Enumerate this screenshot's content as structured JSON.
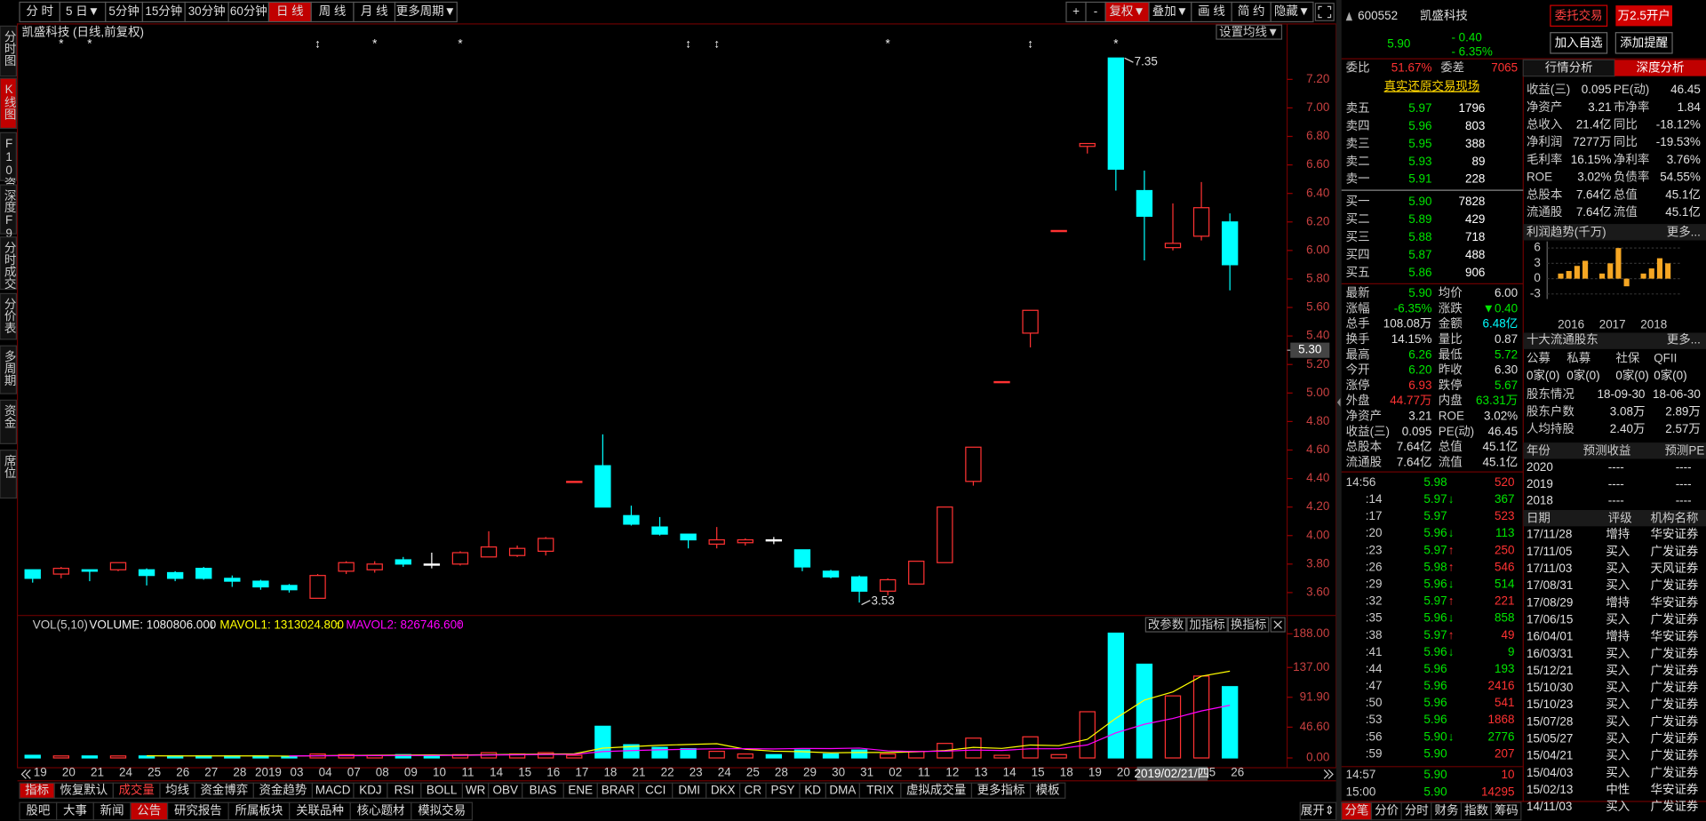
{
  "toolbar": {
    "periods": [
      "分 时",
      "5 日▼",
      "5分钟",
      "15分钟",
      "30分钟",
      "60分钟",
      "日 线",
      "周 线",
      "月 线",
      "更多周期▼"
    ],
    "tools": [
      "+",
      "-",
      "复权▼",
      "叠加▼",
      "画 线",
      "简 约",
      "隐藏▼"
    ]
  },
  "side_tabs": [
    "分时图",
    "K线图",
    "F10资料",
    "深度F9",
    "分时成交",
    "分价表",
    "多周期",
    "资金",
    "席位"
  ],
  "chart_data": {
    "type": "candlestick",
    "title": "凯盛科技 (日线,前复权)",
    "ma_button": "设置均线▼",
    "up_color": "#ff3232",
    "down_color": "#00ffff",
    "flat_color": "#ffffff",
    "categories": [
      "19",
      "20",
      "21",
      "24",
      "25",
      "26",
      "27",
      "28",
      "2019",
      "03",
      "04",
      "07",
      "08",
      "09",
      "10",
      "11",
      "14",
      "15",
      "16",
      "17",
      "18",
      "21",
      "22",
      "23",
      "24",
      "25",
      "28",
      "29",
      "30",
      "31",
      "02",
      "11",
      "12",
      "13",
      "14",
      "15",
      "18",
      "19",
      "20",
      null,
      null,
      "25",
      "26"
    ],
    "open": [
      3.76,
      3.73,
      3.76,
      3.76,
      3.76,
      3.74,
      3.77,
      3.7,
      3.68,
      3.65,
      3.56,
      3.75,
      3.76,
      3.83,
      3.8,
      3.8,
      3.85,
      3.86,
      3.89,
      4.38,
      4.49,
      4.14,
      4.06,
      4.01,
      3.94,
      3.95,
      3.97,
      3.9,
      3.75,
      3.71,
      3.61,
      3.66,
      3.81,
      4.38,
      5.08,
      5.42,
      6.14,
      6.73,
      7.35,
      6.42,
      6.02,
      6.1,
      6.2
    ],
    "high": [
      3.76,
      3.78,
      3.76,
      3.81,
      3.77,
      3.75,
      3.78,
      3.72,
      3.69,
      3.66,
      3.73,
      3.82,
      3.82,
      3.85,
      3.88,
      3.89,
      4.03,
      3.93,
      3.99,
      4.38,
      4.71,
      4.21,
      4.13,
      4.01,
      4.06,
      3.98,
      3.99,
      3.9,
      3.76,
      3.72,
      3.7,
      3.82,
      4.2,
      4.62,
      5.08,
      5.58,
      6.14,
      6.75,
      7.35,
      6.56,
      6.33,
      6.48,
      6.26
    ],
    "low": [
      3.67,
      3.7,
      3.68,
      3.75,
      3.65,
      3.68,
      3.69,
      3.64,
      3.62,
      3.6,
      3.56,
      3.73,
      3.74,
      3.78,
      3.77,
      3.79,
      3.85,
      3.85,
      3.86,
      4.38,
      4.2,
      4.07,
      4.0,
      3.91,
      3.91,
      3.93,
      3.94,
      3.75,
      3.7,
      3.53,
      3.58,
      3.66,
      3.81,
      4.35,
      5.08,
      5.32,
      6.14,
      6.68,
      6.42,
      5.93,
      6.0,
      6.07,
      5.72
    ],
    "close": [
      3.7,
      3.77,
      3.75,
      3.81,
      3.72,
      3.7,
      3.7,
      3.68,
      3.64,
      3.62,
      3.72,
      3.81,
      3.8,
      3.8,
      3.8,
      3.88,
      3.92,
      3.91,
      3.98,
      4.38,
      4.2,
      4.08,
      4.01,
      3.97,
      3.97,
      3.97,
      3.97,
      3.78,
      3.71,
      3.61,
      3.69,
      3.82,
      4.2,
      4.62,
      5.08,
      5.58,
      6.14,
      6.75,
      6.57,
      6.24,
      6.05,
      6.3,
      5.9
    ],
    "ylim": [
      3.447,
      7.467
    ],
    "yticks": [
      {
        "value": 3.6,
        "label": "3.60"
      },
      {
        "value": 3.8,
        "label": "3.80"
      },
      {
        "value": 4.0,
        "label": "4.00"
      },
      {
        "value": 4.2,
        "label": "4.20"
      },
      {
        "value": 4.4,
        "label": "4.40"
      },
      {
        "value": 4.6,
        "label": "4.60"
      },
      {
        "value": 4.8,
        "label": "4.80"
      },
      {
        "value": 5.0,
        "label": "5.00"
      },
      {
        "value": 5.2,
        "label": "5.20"
      },
      {
        "value": 5.4,
        "label": "5.40"
      },
      {
        "value": 5.6,
        "label": "5.60"
      },
      {
        "value": 5.8,
        "label": "5.80"
      },
      {
        "value": 6.0,
        "label": "6.00"
      },
      {
        "value": 6.2,
        "label": "6.20"
      },
      {
        "value": 6.4,
        "label": "6.40"
      },
      {
        "value": 6.6,
        "label": "6.60"
      },
      {
        "value": 6.8,
        "label": "6.80"
      },
      {
        "value": 7.0,
        "label": "7.00"
      },
      {
        "value": 7.2,
        "label": "7.20"
      }
    ],
    "high_label": {
      "value": 7.35,
      "label": "7.35"
    },
    "low_label": {
      "value": 3.53,
      "label": "3.53"
    },
    "cursor_price": {
      "value": 5.3,
      "label": "5.30"
    },
    "cursor_date": "2019/02/21/四",
    "markers": [
      {
        "index": 1,
        "symbol": "*"
      },
      {
        "index": 2,
        "symbol": "*"
      },
      {
        "index": 10,
        "symbol": "↕"
      },
      {
        "index": 12,
        "symbol": "*"
      },
      {
        "index": 15,
        "symbol": "*"
      },
      {
        "index": 23,
        "symbol": "↕"
      },
      {
        "index": 24,
        "symbol": "↕"
      },
      {
        "index": 30,
        "symbol": "*"
      },
      {
        "index": 35,
        "symbol": "↕"
      },
      {
        "index": 38,
        "symbol": "*"
      }
    ],
    "volume": {
      "title": "VOL(5,10)",
      "volume_text": "VOLUME: 1080806.000",
      "volume_arrow": "↓",
      "mavol1_text": "MAVOL1: 1313024.800",
      "mavol1_arrow": "↑",
      "mavol1_color": "#ffff00",
      "mavol1_period": 5,
      "mavol2_text": "MAVOL2: 826746.600",
      "mavol2_arrow": "↑",
      "mavol2_color": "#ff00ff",
      "mavol2_period": 10,
      "buttons": [
        "改参数",
        "加指标",
        "换指标"
      ],
      "values": [
        4,
        3,
        3,
        3,
        3,
        3,
        3,
        3,
        3,
        2,
        6,
        5,
        4,
        5,
        3,
        5,
        8,
        6,
        8,
        4,
        48,
        20,
        16,
        14,
        10,
        6,
        5,
        12,
        6,
        12,
        6,
        10,
        22,
        30,
        4,
        32,
        5,
        70,
        189,
        142,
        94,
        124,
        108
      ],
      "ylim": [
        0,
        196
      ],
      "yticks": [
        {
          "value": 0,
          "label": "0.00"
        },
        {
          "value": 46.6,
          "label": "46.60"
        },
        {
          "value": 91.9,
          "label": "91.90"
        },
        {
          "value": 137,
          "label": "137.00"
        },
        {
          "value": 188,
          "label": "188.00"
        }
      ]
    }
  },
  "indicator_tabs": [
    "指标",
    "恢复默认",
    "成交量",
    "均线",
    "资金博弈",
    "资金趋势",
    "MACD",
    "KDJ",
    "RSI",
    "BOLL",
    "WR",
    "OBV",
    "BIAS",
    "ENE",
    "BRAR",
    "CCI",
    "DMI",
    "DKX",
    "CR",
    "PSY",
    "KD",
    "DMA",
    "TRIX",
    "虚拟成交量",
    "更多指标",
    "模板"
  ],
  "bottom_tabs": [
    "股吧",
    "大事",
    "新闻",
    "公告",
    "研究报告",
    "所属板块",
    "关联品种",
    "核心题材",
    "模拟交易"
  ],
  "expand": "展开⇕",
  "quote": {
    "code": "600552",
    "name": "凯盛科技",
    "price": "5.90",
    "change": "- 0.40",
    "pct": "- 6.35%",
    "buttons": [
      "委托交易",
      "万2.5开户",
      "加入自选",
      "添加提醒"
    ],
    "ratio_label": "委比",
    "ratio": "51.67%",
    "diff_label": "委差",
    "diff": "7065",
    "live": "真实还原交易现场",
    "asks": [
      [
        "卖五",
        "5.97",
        "1796"
      ],
      [
        "卖四",
        "5.96",
        "803"
      ],
      [
        "卖三",
        "5.95",
        "388"
      ],
      [
        "卖二",
        "5.93",
        "89"
      ],
      [
        "卖一",
        "5.91",
        "228"
      ]
    ],
    "bids": [
      [
        "买一",
        "5.90",
        "7828"
      ],
      [
        "买二",
        "5.89",
        "429"
      ],
      [
        "买三",
        "5.88",
        "718"
      ],
      [
        "买四",
        "5.87",
        "488"
      ],
      [
        "买五",
        "5.86",
        "906"
      ]
    ],
    "stats": [
      [
        "最新",
        "5.90",
        "均价",
        "6.00"
      ],
      [
        "涨幅",
        "-6.35%",
        "涨跌",
        "▼0.40"
      ],
      [
        "总手",
        "108.08万",
        "金额",
        "6.48亿"
      ],
      [
        "换手",
        "14.15%",
        "量比",
        "0.87"
      ],
      [
        "最高",
        "6.26",
        "最低",
        "5.72"
      ],
      [
        "今开",
        "6.20",
        "昨收",
        "6.30"
      ],
      [
        "涨停",
        "6.93",
        "跌停",
        "5.67"
      ],
      [
        "外盘",
        "44.77万",
        "内盘",
        "63.31万"
      ],
      [
        "净资产",
        "3.21",
        "ROE",
        "3.02%"
      ],
      [
        "收益(三)",
        "0.095",
        "PE(动)",
        "46.45"
      ],
      [
        "总股本",
        "7.64亿",
        "总值",
        "45.1亿"
      ],
      [
        "流通股",
        "7.64亿",
        "流值",
        "45.1亿"
      ]
    ],
    "stats_colors": [
      [
        "#00e600",
        "#e0e0e0"
      ],
      [
        "#00e600",
        "#00e600"
      ],
      [
        "#e0e0e0",
        "#00ffff"
      ],
      [
        "#e0e0e0",
        "#e0e0e0"
      ],
      [
        "#00e600",
        "#00e600"
      ],
      [
        "#00e600",
        "#e0e0e0"
      ],
      [
        "#ff3232",
        "#00e600"
      ],
      [
        "#ff3232",
        "#00e600"
      ],
      [
        "#e0e0e0",
        "#e0e0e0"
      ],
      [
        "#e0e0e0",
        "#e0e0e0"
      ],
      [
        "#e0e0e0",
        "#e0e0e0"
      ],
      [
        "#e0e0e0",
        "#e0e0e0"
      ]
    ],
    "ticks": [
      {
        "time": "14:56",
        "price": "5.98",
        "vol": "520",
        "color": "#ff3232"
      },
      {
        "time": ":14",
        "price": "5.97",
        "arrow": "↓",
        "vol": "367",
        "color": "#00e600"
      },
      {
        "time": ":17",
        "price": "5.97",
        "vol": "523",
        "color": "#ff3232"
      },
      {
        "time": ":20",
        "price": "5.96",
        "arrow": "↓",
        "vol": "113",
        "color": "#00e600"
      },
      {
        "time": ":23",
        "price": "5.97",
        "arrow": "↑",
        "vol": "250",
        "color": "#ff3232"
      },
      {
        "time": ":26",
        "price": "5.98",
        "arrow": "↑",
        "vol": "546",
        "color": "#ff3232"
      },
      {
        "time": ":29",
        "price": "5.96",
        "arrow": "↓",
        "vol": "514",
        "color": "#00e600"
      },
      {
        "time": ":32",
        "price": "5.97",
        "arrow": "↑",
        "vol": "221",
        "color": "#ff3232"
      },
      {
        "time": ":35",
        "price": "5.96",
        "arrow": "↓",
        "vol": "858",
        "color": "#00e600"
      },
      {
        "time": ":38",
        "price": "5.97",
        "arrow": "↑",
        "vol": "49",
        "color": "#ff3232"
      },
      {
        "time": ":41",
        "price": "5.96",
        "arrow": "↓",
        "vol": "9",
        "color": "#00e600"
      },
      {
        "time": ":44",
        "price": "5.96",
        "vol": "193",
        "color": "#00e600"
      },
      {
        "time": ":47",
        "price": "5.96",
        "vol": "2416",
        "color": "#ff3232"
      },
      {
        "time": ":50",
        "price": "5.96",
        "vol": "541",
        "color": "#ff3232"
      },
      {
        "time": ":53",
        "price": "5.96",
        "vol": "1868",
        "color": "#ff3232"
      },
      {
        "time": ":56",
        "price": "5.90",
        "arrow": "↓",
        "vol": "2776",
        "color": "#00e600"
      },
      {
        "time": ":59",
        "price": "5.90",
        "vol": "207",
        "color": "#ff3232"
      },
      {
        "time": "14:57",
        "price": "5.90",
        "vol": "10",
        "color": "#ff3232"
      },
      {
        "time": "15:00",
        "price": "5.90",
        "vol": "14295",
        "color": "#ff3232"
      }
    ],
    "panel_tabs": [
      "分笔",
      "分价",
      "分时",
      "财务",
      "指数",
      "筹码"
    ]
  },
  "analysis": {
    "tabs": [
      "行情分析",
      "深度分析"
    ],
    "rows": [
      [
        "收益(三)",
        "0.095",
        "PE(动)",
        "46.45"
      ],
      [
        "净资产",
        "3.21",
        "市净率",
        "1.84"
      ],
      [
        "总收入",
        "21.4亿",
        "同比",
        "-18.12%"
      ],
      [
        "净利润",
        "7277万",
        "同比",
        "-19.53%"
      ],
      [
        "毛利率",
        "16.15%",
        "净利率",
        "3.76%"
      ],
      [
        "ROE",
        "3.02%",
        "负债率",
        "54.55%"
      ],
      [
        "总股本",
        "7.64亿",
        "总值",
        "45.1亿"
      ],
      [
        "流通股",
        "7.64亿",
        "流值",
        "45.1亿"
      ]
    ],
    "profit_title": "利润趋势(千万)",
    "more": "更多...",
    "profit": {
      "values": [
        1,
        1.5,
        2.5,
        3.5,
        1,
        3,
        6,
        -1.5,
        1,
        2,
        4,
        3
      ],
      "years": [
        "2016",
        "2017",
        "2018"
      ],
      "ylim": [
        -4,
        7.3
      ],
      "yticks": [
        6,
        3,
        0,
        -3
      ],
      "color": "#f5a623"
    },
    "holders_title": "十大流通股东",
    "holder_types": [
      "公募",
      "私募",
      "社保",
      "QFII"
    ],
    "holder_counts": [
      "0家(0)",
      "0家(0)",
      "0家(0)",
      "0家(0)"
    ],
    "holder_rows": [
      [
        "股东情况",
        "18-09-30",
        "18-06-30"
      ],
      [
        "股东户数",
        "3.08万",
        "2.89万"
      ],
      [
        "人均持股",
        "2.40万",
        "2.57万"
      ]
    ],
    "forecast_head": [
      "年份",
      "预测收益",
      "预测PE"
    ],
    "forecast": [
      [
        "2020",
        "----",
        "----"
      ],
      [
        "2019",
        "----",
        "----"
      ],
      [
        "2018",
        "----",
        "----"
      ]
    ],
    "rating_head": [
      "日期",
      "评级",
      "机构名称"
    ],
    "ratings": [
      [
        "17/11/28",
        "增持",
        "华安证券"
      ],
      [
        "17/11/05",
        "买入",
        "广发证券"
      ],
      [
        "17/11/03",
        "买入",
        "天风证券"
      ],
      [
        "17/08/31",
        "买入",
        "广发证券"
      ],
      [
        "17/08/29",
        "增持",
        "华安证券"
      ],
      [
        "17/06/15",
        "买入",
        "广发证券"
      ],
      [
        "16/04/01",
        "增持",
        "华安证券"
      ],
      [
        "16/03/31",
        "买入",
        "广发证券"
      ],
      [
        "15/12/21",
        "买入",
        "广发证券"
      ],
      [
        "15/10/30",
        "买入",
        "广发证券"
      ],
      [
        "15/10/23",
        "买入",
        "广发证券"
      ],
      [
        "15/07/28",
        "买入",
        "广发证券"
      ],
      [
        "15/05/27",
        "买入",
        "广发证券"
      ],
      [
        "15/04/21",
        "买入",
        "广发证券"
      ],
      [
        "15/04/03",
        "买入",
        "广发证券"
      ],
      [
        "15/02/13",
        "中性",
        "华安证券"
      ],
      [
        "14/11/03",
        "买入",
        "广发证券"
      ]
    ]
  }
}
